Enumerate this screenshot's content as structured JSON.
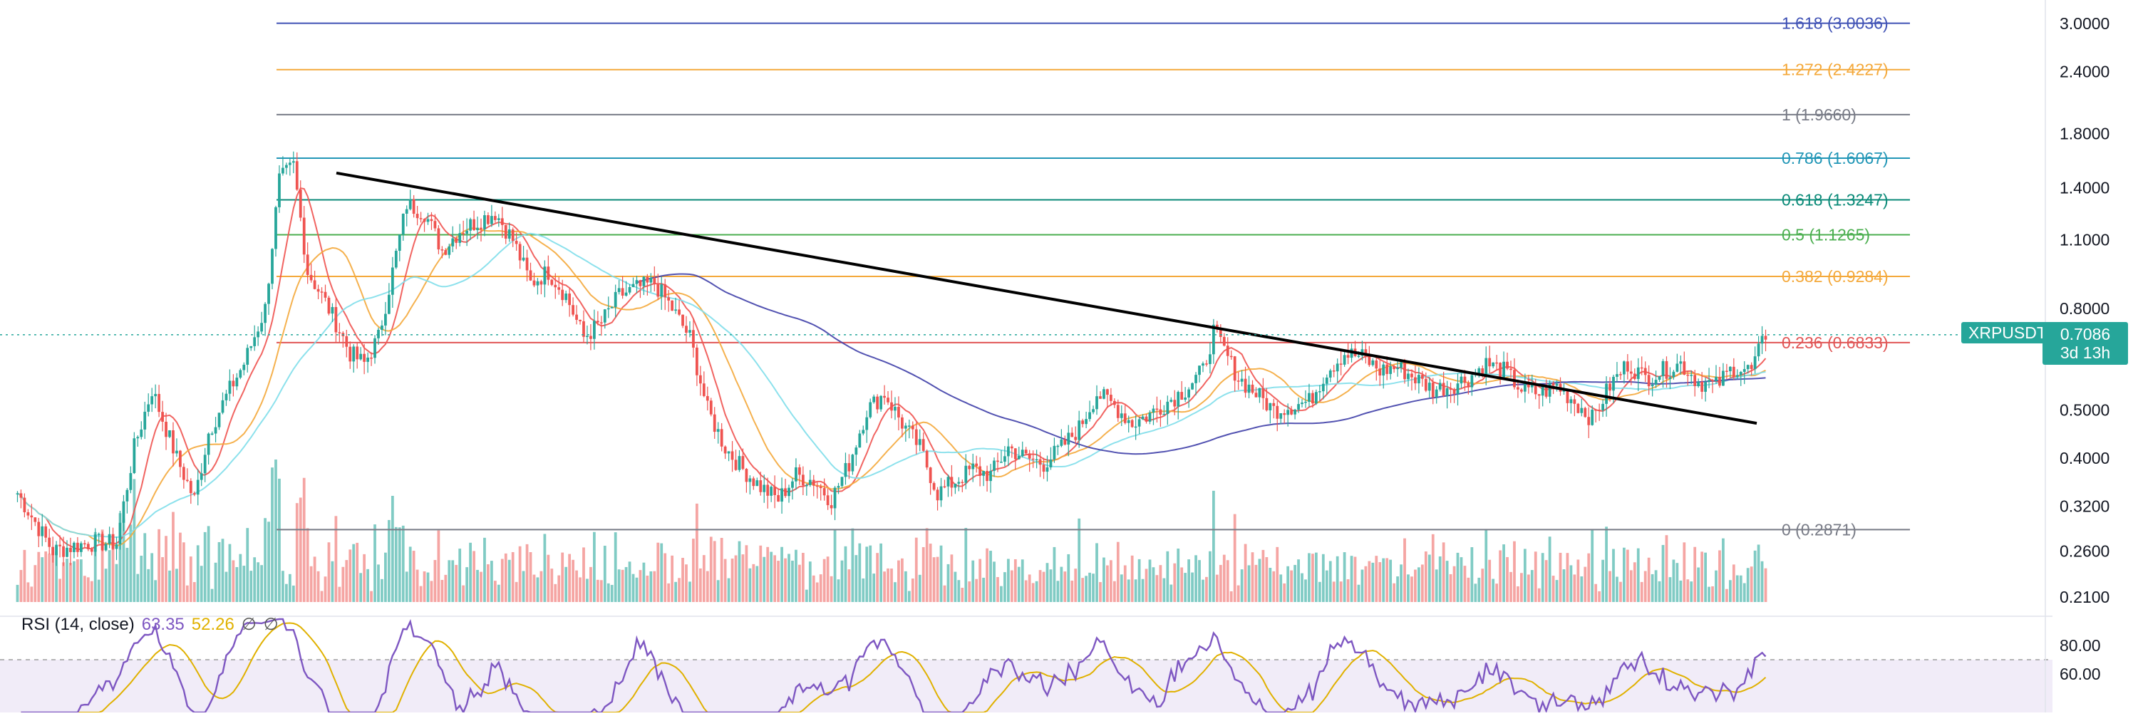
{
  "chart_data": [
    {
      "type": "candlestick",
      "symbol": "XRPUSDT",
      "last_price": "0.7086",
      "countdown": "3d 13h",
      "scale": "log",
      "y_axis_labels": [
        "3.0000",
        "2.4000",
        "1.8000",
        "1.4000",
        "1.1000",
        "0.8000",
        "0.5000",
        "0.4000",
        "0.3200",
        "0.2600",
        "0.2100"
      ],
      "y_axis_values": [
        3.0,
        2.4,
        1.8,
        1.4,
        1.1,
        0.8,
        0.5,
        0.4,
        0.32,
        0.26,
        0.21
      ],
      "fib_levels": [
        {
          "label": "1.618 (3.0036)",
          "price": 3.0036,
          "color": "#3f51b5"
        },
        {
          "label": "1.272 (2.4227)",
          "price": 2.4227,
          "color": "#f4a93b"
        },
        {
          "label": "1 (1.9660)",
          "price": 1.966,
          "color": "#787b86"
        },
        {
          "label": "0.786 (1.6067)",
          "price": 1.6067,
          "color": "#2196b6"
        },
        {
          "label": "0.618 (1.3247)",
          "price": 1.3247,
          "color": "#0a8a78"
        },
        {
          "label": "0.5 (1.1265)",
          "price": 1.1265,
          "color": "#4caf50"
        },
        {
          "label": "0.382 (0.9284)",
          "price": 0.9284,
          "color": "#f4a93b"
        },
        {
          "label": "0.236 (0.6833)",
          "price": 0.6833,
          "color": "#e05555"
        },
        {
          "label": "0 (0.2871)",
          "price": 0.2871,
          "color": "#787b86"
        }
      ],
      "trendline": {
        "from_price": 1.5,
        "to_price": 0.47
      },
      "colors": {
        "up": "#26a69a",
        "down": "#ef5350",
        "trendline": "#000000",
        "ma_fast": "#ef5350",
        "ma_mid": "#f4a93b",
        "ma_slow": "#80deea",
        "ma_long": "#3f3fa8"
      }
    },
    {
      "type": "line",
      "name": "RSI (14, close)",
      "y_axis_labels": [
        "80.00",
        "60.00"
      ],
      "y_axis_values": [
        80,
        60
      ],
      "band": [
        70,
        30
      ]
    }
  ],
  "rsi_legend": {
    "name": "RSI (14, close)",
    "value1": "63.35",
    "value2": "52.26",
    "icon1": "∅",
    "icon2": "∅"
  }
}
